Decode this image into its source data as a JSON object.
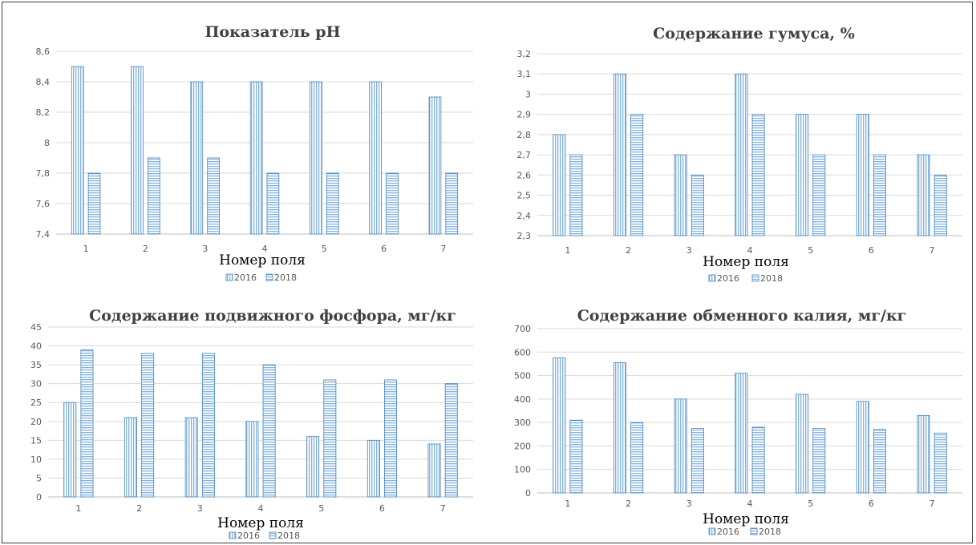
{
  "chart_data": [
    {
      "type": "bar",
      "title": "Показатель pH",
      "xlabel": "Номер поля",
      "categories": [
        "1",
        "2",
        "3",
        "4",
        "5",
        "6",
        "7"
      ],
      "ylim": [
        7.4,
        8.6
      ],
      "yticks": [
        "7,4",
        "7,6",
        "7,8",
        "8",
        "8,2",
        "8,4",
        "8,6"
      ],
      "grid": true,
      "legend": "bottom",
      "series": [
        {
          "name": "2016",
          "values": [
            8.5,
            8.5,
            8.4,
            8.4,
            8.4,
            8.4,
            8.3
          ]
        },
        {
          "name": "2018",
          "values": [
            7.8,
            7.9,
            7.9,
            7.8,
            7.8,
            7.8,
            7.8
          ]
        }
      ]
    },
    {
      "type": "bar",
      "title": "Содержание гумуса, %",
      "xlabel": "Номер поля",
      "categories": [
        "1",
        "2",
        "3",
        "4",
        "5",
        "6",
        "7"
      ],
      "ylim": [
        2.3,
        3.2
      ],
      "yticks": [
        "2,3",
        "2,4",
        "2,5",
        "2,6",
        "2,7",
        "2,8",
        "2,9",
        "3",
        "3,1",
        "3,2"
      ],
      "grid": true,
      "legend": "bottom",
      "series": [
        {
          "name": "2016",
          "values": [
            2.8,
            3.1,
            2.7,
            3.1,
            2.9,
            2.9,
            2.7
          ]
        },
        {
          "name": "2018",
          "values": [
            2.7,
            2.9,
            2.6,
            2.9,
            2.7,
            2.7,
            2.6
          ]
        }
      ]
    },
    {
      "type": "bar",
      "title": "Содержание подвижного фосфора, мг/кг",
      "xlabel": "Номер поля",
      "categories": [
        "1",
        "2",
        "3",
        "4",
        "5",
        "6",
        "7"
      ],
      "ylim": [
        0,
        45
      ],
      "yticks": [
        "0",
        "5",
        "10",
        "15",
        "20",
        "25",
        "30",
        "35",
        "40",
        "45"
      ],
      "grid": true,
      "legend": "bottom",
      "series": [
        {
          "name": "2016",
          "values": [
            25,
            21,
            21,
            20,
            16,
            15,
            14
          ]
        },
        {
          "name": "2018",
          "values": [
            39,
            38,
            38,
            35,
            31,
            31,
            30
          ]
        }
      ]
    },
    {
      "type": "bar",
      "title": "Содержание обменного калия, мг/кг",
      "xlabel": "Номер поля",
      "categories": [
        "1",
        "2",
        "3",
        "4",
        "5",
        "6",
        "7"
      ],
      "ylim": [
        0,
        700
      ],
      "yticks": [
        "0",
        "100",
        "200",
        "300",
        "400",
        "500",
        "600",
        "700"
      ],
      "grid": true,
      "legend": "bottom",
      "series": [
        {
          "name": "2016",
          "values": [
            575,
            555,
            400,
            510,
            420,
            390,
            330
          ]
        },
        {
          "name": "2018",
          "values": [
            310,
            300,
            275,
            280,
            275,
            270,
            255
          ]
        }
      ]
    }
  ],
  "colors": {
    "bar_stroke": "#4a84b8",
    "bar_hatch": "#5b9bd5",
    "bar_fill": "#ffffff"
  }
}
